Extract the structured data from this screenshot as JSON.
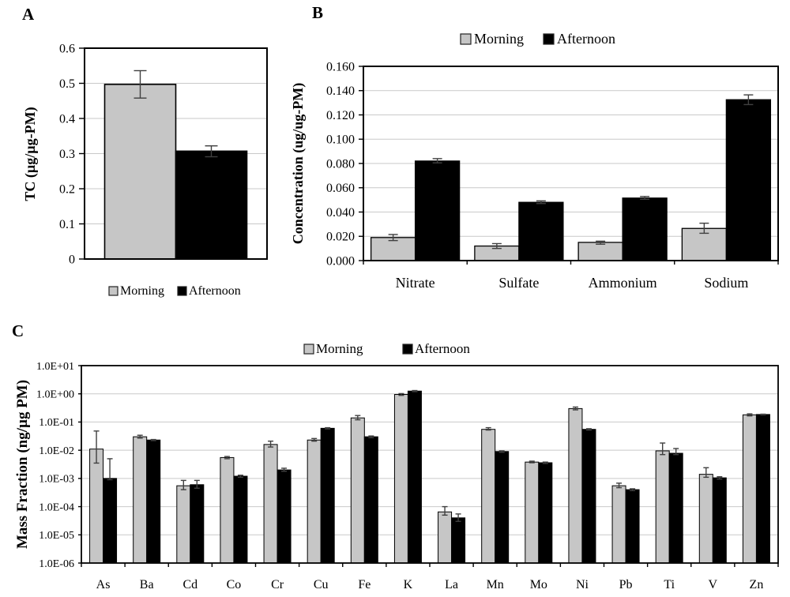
{
  "colors": {
    "morning": "#c6c6c6",
    "afternoon": "#000000",
    "bar_border": "#000000",
    "grid": "#c9c9c9",
    "axis": "#000000",
    "error_bar": "#404040",
    "background": "#ffffff"
  },
  "chart_data": [
    {
      "panel_label": "A",
      "type": "bar",
      "title": "",
      "xlabel": "",
      "ylabel": "TC (µg/µg-PM)",
      "scale": "linear",
      "grid": true,
      "legend_position": "bottom",
      "categories": [
        ""
      ],
      "ylim": [
        0,
        0.6
      ],
      "yticks": [
        0,
        0.1,
        0.2,
        0.3,
        0.4,
        0.5,
        0.6
      ],
      "ytick_labels": [
        "0",
        "0.1",
        "0.2",
        "0.3",
        "0.4",
        "0.5",
        "0.6"
      ],
      "series": [
        {
          "name": "Morning",
          "values": [
            0.497
          ],
          "err_lo": [
            0.458
          ],
          "err_hi": [
            0.536
          ]
        },
        {
          "name": "Afternoon",
          "values": [
            0.307
          ],
          "err_lo": [
            0.291
          ],
          "err_hi": [
            0.322
          ]
        }
      ]
    },
    {
      "panel_label": "B",
      "type": "bar",
      "title": "",
      "xlabel": "",
      "ylabel": "Concentration (ug/ug-PM)",
      "scale": "linear",
      "grid": true,
      "legend_position": "top",
      "categories": [
        "Nitrate",
        "Sulfate",
        "Ammonium",
        "Sodium"
      ],
      "ylim": [
        0,
        0.16
      ],
      "yticks": [
        0,
        0.02,
        0.04,
        0.06,
        0.08,
        0.1,
        0.12,
        0.14,
        0.16
      ],
      "ytick_labels": [
        "0.000",
        "0.020",
        "0.040",
        "0.060",
        "0.080",
        "0.100",
        "0.120",
        "0.140",
        "0.160"
      ],
      "series": [
        {
          "name": "Morning",
          "values": [
            0.019,
            0.012,
            0.015,
            0.0265
          ],
          "err_lo": [
            0.0165,
            0.01,
            0.0135,
            0.0225
          ],
          "err_hi": [
            0.0215,
            0.014,
            0.016,
            0.0308
          ]
        },
        {
          "name": "Afternoon",
          "values": [
            0.082,
            0.048,
            0.0515,
            0.1325
          ],
          "err_lo": [
            0.0805,
            0.047,
            0.0505,
            0.1285
          ],
          "err_hi": [
            0.084,
            0.0492,
            0.0528,
            0.1365
          ]
        }
      ]
    },
    {
      "panel_label": "C",
      "type": "bar",
      "title": "",
      "xlabel": "",
      "ylabel": "Mass Fraction (ng/µg PM)",
      "scale": "log",
      "grid": true,
      "legend_position": "top",
      "categories": [
        "As",
        "Ba",
        "Cd",
        "Co",
        "Cr",
        "Cu",
        "Fe",
        "K",
        "La",
        "Mn",
        "Mo",
        "Ni",
        "Pb",
        "Ti",
        "V",
        "Zn"
      ],
      "ylim": [
        1e-06,
        10
      ],
      "yticks": [
        1e-06,
        1e-05,
        0.0001,
        0.001,
        0.01,
        0.1,
        1,
        10
      ],
      "ytick_labels": [
        "1.0E-06",
        "1.0E-05",
        "1.0E-04",
        "1.0E-03",
        "1.0E-02",
        "1.0E-01",
        "1.0E+00",
        "1.0E+01"
      ],
      "series": [
        {
          "name": "Morning",
          "values": [
            0.011,
            0.03,
            0.00055,
            0.0055,
            0.016,
            0.023,
            0.14,
            0.95,
            6.5e-05,
            0.055,
            0.0038,
            0.3,
            0.00055,
            0.0095,
            0.0014,
            0.18
          ],
          "err_lo": [
            0.0035,
            0.027,
            0.0004,
            0.005,
            0.013,
            0.021,
            0.12,
            0.88,
            5e-05,
            0.052,
            0.0036,
            0.27,
            0.00047,
            0.007,
            0.0011,
            0.165
          ],
          "err_hi": [
            0.048,
            0.034,
            0.00085,
            0.006,
            0.021,
            0.026,
            0.17,
            1.02,
            0.0001,
            0.063,
            0.0041,
            0.34,
            0.00068,
            0.018,
            0.0024,
            0.195
          ]
        },
        {
          "name": "Afternoon",
          "values": [
            0.001,
            0.023,
            0.0006,
            0.0012,
            0.002,
            0.06,
            0.03,
            1.25,
            4e-05,
            0.009,
            0.0036,
            0.055,
            0.0004,
            0.0078,
            0.00105,
            0.185
          ],
          "err_lo": [
            0.0009,
            0.022,
            0.00045,
            0.0011,
            0.0018,
            0.057,
            0.028,
            1.2,
            3e-05,
            0.0085,
            0.0034,
            0.052,
            0.00037,
            0.007,
            0.00095,
            0.18
          ],
          "err_hi": [
            0.005,
            0.024,
            0.00085,
            0.0013,
            0.0023,
            0.063,
            0.032,
            1.31,
            5.5e-05,
            0.0095,
            0.0038,
            0.058,
            0.00043,
            0.0115,
            0.00115,
            0.19
          ]
        }
      ]
    }
  ]
}
